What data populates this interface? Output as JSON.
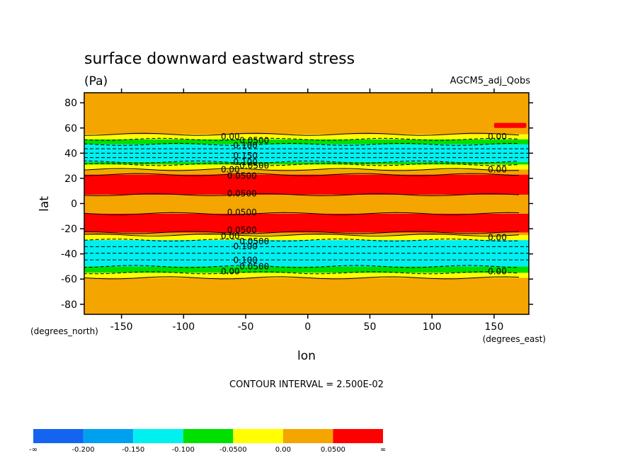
{
  "chart_data": {
    "type": "heatmap",
    "title": "surface downward eastward stress",
    "units": "(Pa)",
    "dataset": "AGCM5_adj_Qobs",
    "xlabel": "lon",
    "ylabel": "lat",
    "x_unit_label": "(degrees_east)",
    "y_unit_label": "(degrees_north)",
    "xlim": [
      -180,
      178
    ],
    "ylim": [
      -88,
      88
    ],
    "x_ticks": [
      -150,
      -100,
      -50,
      0,
      50,
      100,
      150
    ],
    "y_ticks": [
      -80,
      -60,
      -40,
      -20,
      0,
      20,
      40,
      60,
      80
    ],
    "x_tick_labels": [
      "-150",
      "-100",
      "-50",
      "0",
      "50",
      "100",
      "150"
    ],
    "y_tick_labels": [
      "-80",
      "-60",
      "-40",
      "-20",
      "0",
      "20",
      "40",
      "60",
      "80"
    ],
    "contour_interval_text": "CONTOUR INTERVAL = 2.500E-02",
    "colorbar": {
      "colors": [
        "#1464f0",
        "#00a0f0",
        "#00f0f0",
        "#00e000",
        "#ffff00",
        "#f5a500",
        "#ff0000"
      ],
      "labels": [
        "-∞",
        "-0.200",
        "-0.150",
        "-0.100",
        "-0.0500",
        "0.00",
        "0.0500",
        "∞"
      ]
    },
    "lat_bands": [
      {
        "lat_min": -88,
        "lat_max": -59,
        "value": 0.025,
        "color": "#f5a500"
      },
      {
        "lat_min": -59,
        "lat_max": -55,
        "value": -0.01,
        "color": "#ffff00"
      },
      {
        "lat_min": -55,
        "lat_max": -50,
        "value": -0.06,
        "color": "#00e000"
      },
      {
        "lat_min": -50,
        "lat_max": -29,
        "value": -0.13,
        "color": "#00f0f0"
      },
      {
        "lat_min": -29,
        "lat_max": -25,
        "value": -0.01,
        "color": "#ffff00"
      },
      {
        "lat_min": -25,
        "lat_max": -23,
        "value": 0.03,
        "color": "#f5a500"
      },
      {
        "lat_min": -23,
        "lat_max": -8,
        "value": 0.07,
        "color": "#ff0000"
      },
      {
        "lat_min": -8,
        "lat_max": 7,
        "value": 0.035,
        "color": "#f5a500"
      },
      {
        "lat_min": 7,
        "lat_max": 23,
        "value": 0.07,
        "color": "#ff0000"
      },
      {
        "lat_min": 23,
        "lat_max": 27,
        "value": 0.03,
        "color": "#f5a500"
      },
      {
        "lat_min": 27,
        "lat_max": 31,
        "value": -0.01,
        "color": "#ffff00"
      },
      {
        "lat_min": 31,
        "lat_max": 33,
        "value": -0.06,
        "color": "#00e000"
      },
      {
        "lat_min": 33,
        "lat_max": 47,
        "value": -0.13,
        "color": "#00f0f0"
      },
      {
        "lat_min": 47,
        "lat_max": 51,
        "value": -0.06,
        "color": "#00e000"
      },
      {
        "lat_min": 51,
        "lat_max": 55,
        "value": -0.01,
        "color": "#ffff00"
      },
      {
        "lat_min": 55,
        "lat_max": 88,
        "value": 0.025,
        "color": "#f5a500"
      }
    ],
    "red_patches": [
      {
        "lon_min": 150,
        "lon_max": 176,
        "lat_min": 60,
        "lat_max": 64,
        "value": 0.06
      }
    ],
    "contour_labels": [
      {
        "text": "0.00",
        "lon": -70,
        "lat": 53
      },
      {
        "text": "0.0500",
        "lon": -55,
        "lat": 50
      },
      {
        "text": "0.100",
        "lon": -60,
        "lat": 46
      },
      {
        "text": "0.150",
        "lon": -60,
        "lat": 38
      },
      {
        "text": "0.100",
        "lon": -60,
        "lat": 33
      },
      {
        "text": "0.0500",
        "lon": -55,
        "lat": 30
      },
      {
        "text": "0.00",
        "lon": -70,
        "lat": 27
      },
      {
        "text": "0.0500",
        "lon": -65,
        "lat": 22
      },
      {
        "text": "0.0500",
        "lon": -65,
        "lat": 8
      },
      {
        "text": "0.0500",
        "lon": -65,
        "lat": -7
      },
      {
        "text": "0.0500",
        "lon": -65,
        "lat": -21
      },
      {
        "text": "0.00",
        "lon": -70,
        "lat": -26
      },
      {
        "text": "0.0500",
        "lon": -55,
        "lat": -30
      },
      {
        "text": "0.100",
        "lon": -60,
        "lat": -34
      },
      {
        "text": "0.100",
        "lon": -60,
        "lat": -45
      },
      {
        "text": "0.0500",
        "lon": -55,
        "lat": -50
      },
      {
        "text": "0.00",
        "lon": -70,
        "lat": -54
      },
      {
        "text": "0.00",
        "lon": 145,
        "lat": 53
      },
      {
        "text": "0.00",
        "lon": 145,
        "lat": 27
      },
      {
        "text": "0.00",
        "lon": 145,
        "lat": -27
      },
      {
        "text": "0.00",
        "lon": 145,
        "lat": -54
      }
    ]
  }
}
